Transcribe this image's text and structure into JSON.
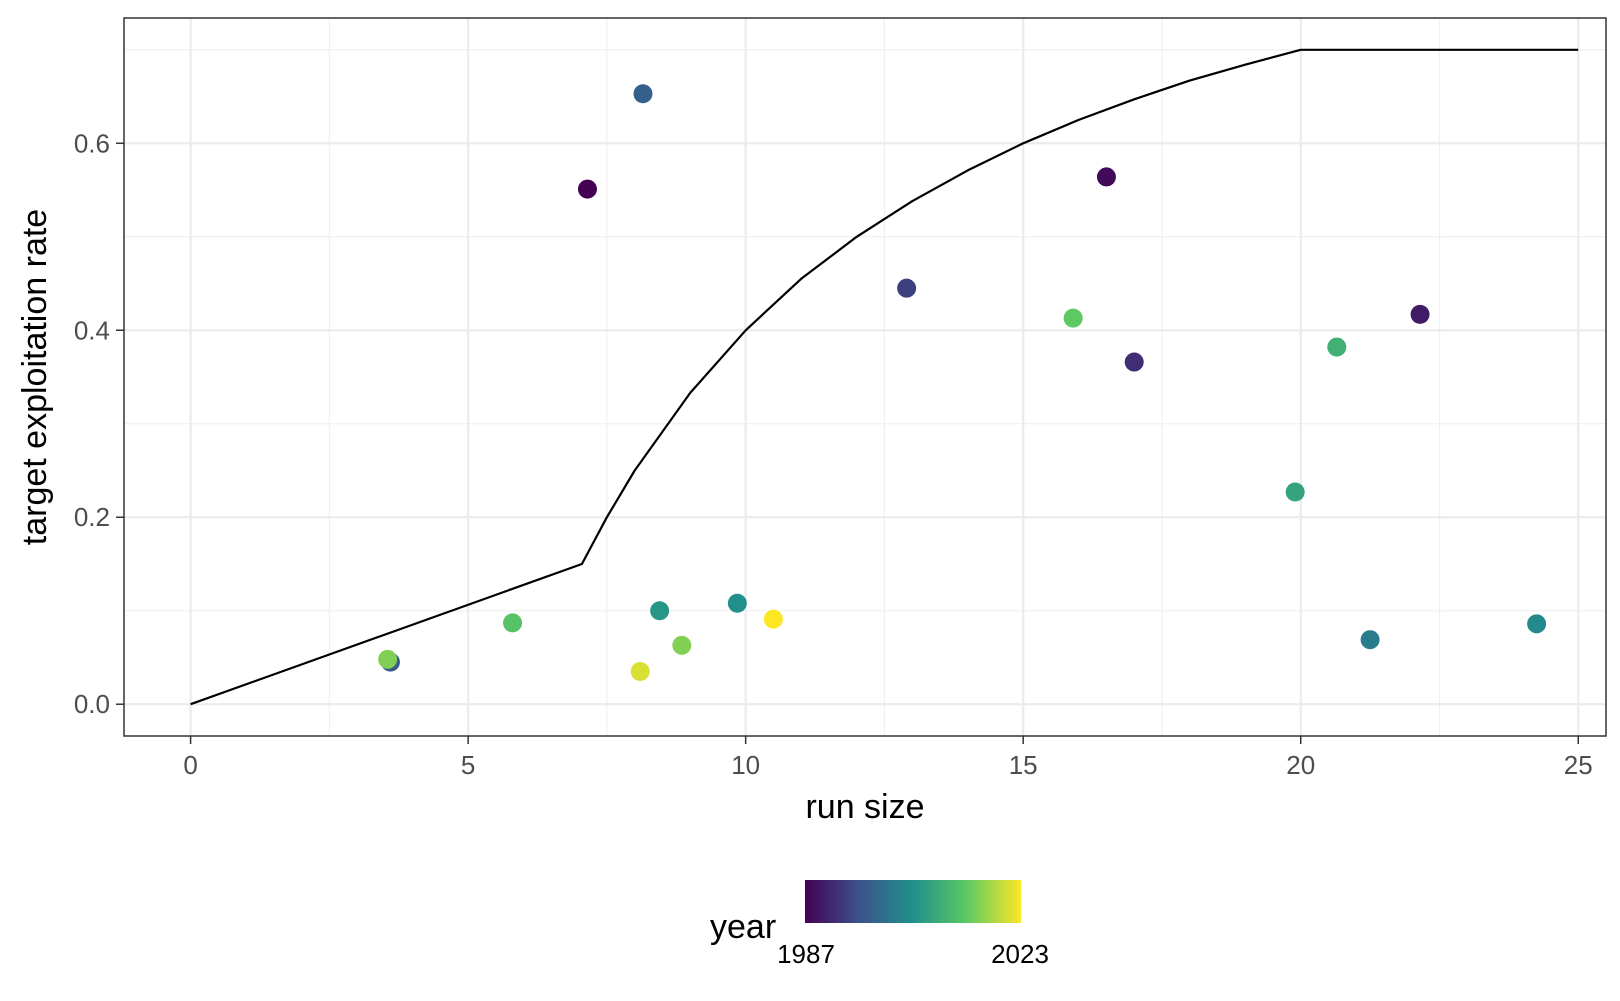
{
  "chart_data": {
    "type": "scatter",
    "xlabel": "run size",
    "ylabel": "target exploitation rate",
    "xlim": [
      -1.2,
      25.5
    ],
    "ylim": [
      -0.034,
      0.734
    ],
    "x_ticks": [
      0,
      5,
      10,
      15,
      20,
      25
    ],
    "x_tick_labels": [
      "0",
      "5",
      "10",
      "15",
      "20",
      "25"
    ],
    "y_ticks": [
      0.0,
      0.2,
      0.4,
      0.6
    ],
    "y_tick_labels": [
      "0.0",
      "0.2",
      "0.4",
      "0.6"
    ],
    "grid": true,
    "legend": {
      "title": "year",
      "placement": "bottom",
      "min_label": "1987",
      "max_label": "2023",
      "min": 1987,
      "max": 2023,
      "palette": [
        "#440154",
        "#3b528b",
        "#21908c",
        "#5dc963",
        "#fde725"
      ]
    },
    "line": {
      "color": "#000000",
      "points": [
        [
          0,
          0.0
        ],
        [
          7.05,
          0.15
        ],
        [
          7.5,
          0.2
        ],
        [
          8,
          0.25
        ],
        [
          9,
          0.333
        ],
        [
          10,
          0.4
        ],
        [
          11,
          0.455
        ],
        [
          12,
          0.5
        ],
        [
          13,
          0.538
        ],
        [
          14,
          0.571
        ],
        [
          15,
          0.6
        ],
        [
          16,
          0.625
        ],
        [
          17,
          0.647
        ],
        [
          18,
          0.667
        ],
        [
          19,
          0.684
        ],
        [
          20,
          0.7
        ],
        [
          25,
          0.7
        ]
      ]
    },
    "points": [
      {
        "x": 7.15,
        "y": 0.551,
        "year": 1987
      },
      {
        "x": 16.5,
        "y": 0.564,
        "year": 1988
      },
      {
        "x": 22.15,
        "y": 0.417,
        "year": 1990
      },
      {
        "x": 17.0,
        "y": 0.366,
        "year": 1992
      },
      {
        "x": 12.9,
        "y": 0.445,
        "year": 1994
      },
      {
        "x": 3.6,
        "y": 0.045,
        "year": 1997
      },
      {
        "x": 8.15,
        "y": 0.653,
        "year": 1998
      },
      {
        "x": 21.25,
        "y": 0.069,
        "year": 2002
      },
      {
        "x": 24.25,
        "y": 0.086,
        "year": 2004
      },
      {
        "x": 9.85,
        "y": 0.108,
        "year": 2005
      },
      {
        "x": 8.45,
        "y": 0.1,
        "year": 2006
      },
      {
        "x": 19.9,
        "y": 0.227,
        "year": 2008
      },
      {
        "x": 20.65,
        "y": 0.382,
        "year": 2010
      },
      {
        "x": 5.8,
        "y": 0.087,
        "year": 2013
      },
      {
        "x": 15.9,
        "y": 0.413,
        "year": 2014
      },
      {
        "x": 8.85,
        "y": 0.063,
        "year": 2016
      },
      {
        "x": 3.55,
        "y": 0.048,
        "year": 2016
      },
      {
        "x": 8.1,
        "y": 0.035,
        "year": 2021
      },
      {
        "x": 10.5,
        "y": 0.091,
        "year": 2023
      }
    ]
  }
}
